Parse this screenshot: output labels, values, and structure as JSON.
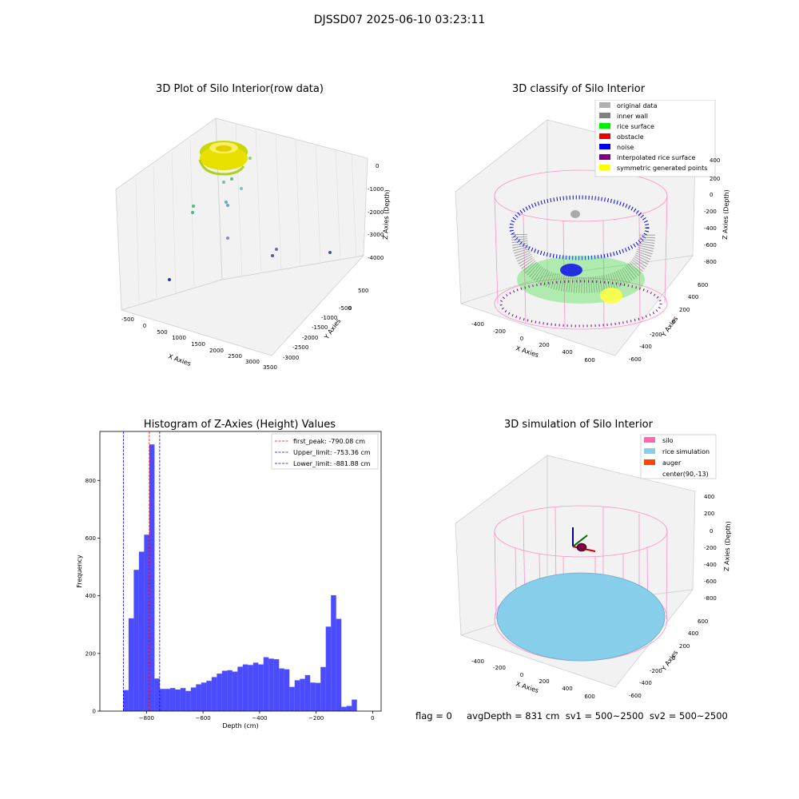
{
  "suptitle": "DJSSD07 2025-06-10 03:23:11",
  "panels": {
    "raw": {
      "title": "3D Plot of Silo Interior(row data)",
      "x_label": "X Axies",
      "y_label": "Y Axies",
      "z_label": "Z Axies (Depth)",
      "x_ticks": [
        "-500",
        "0",
        "500",
        "1000",
        "1500",
        "2000",
        "2500",
        "3000",
        "3500"
      ],
      "y_ticks": [
        "500",
        "0",
        "-500",
        "-1000",
        "-1500",
        "-2000",
        "-2500",
        "-3000"
      ],
      "z_ticks": [
        "0",
        "-1000",
        "-2000",
        "-3000",
        "-4000"
      ]
    },
    "classify": {
      "title": "3D classify of Silo Interior",
      "x_label": "X Axies",
      "y_label": "Y Axies",
      "z_label": "Z Axies (Depth)",
      "x_ticks": [
        "-400",
        "-200",
        "0",
        "200",
        "400",
        "600"
      ],
      "y_ticks": [
        "600",
        "400",
        "200",
        "0",
        "-200",
        "-400",
        "-600"
      ],
      "z_ticks": [
        "400",
        "200",
        "0",
        "-200",
        "-400",
        "-600",
        "-800"
      ],
      "legend": [
        {
          "label": "original data",
          "color": "#b0b0b0"
        },
        {
          "label": "inner wall",
          "color": "#808080"
        },
        {
          "label": "rice surface",
          "color": "#00ee00"
        },
        {
          "label": "obstacle",
          "color": "#ee0000"
        },
        {
          "label": "noise",
          "color": "#0000ee"
        },
        {
          "label": "interpolated rice surface",
          "color": "#800080"
        },
        {
          "label": "symmetric generated points",
          "color": "#ffff00"
        }
      ]
    },
    "simulation": {
      "title": "3D simulation of Silo Interior",
      "x_label": "X Axies",
      "y_label": "Y Axies",
      "z_label": "Z Axies (Depth)",
      "x_ticks": [
        "-400",
        "-200",
        "0",
        "200",
        "400",
        "600"
      ],
      "y_ticks": [
        "600",
        "400",
        "200",
        "0",
        "-200",
        "-400",
        "-600"
      ],
      "z_ticks": [
        "400",
        "200",
        "0",
        "-200",
        "-400",
        "-600",
        "-800"
      ],
      "legend": [
        {
          "label": "silo",
          "color": "#ff69b4"
        },
        {
          "label": "rice simulation",
          "color": "#87ceeb"
        },
        {
          "label": "auger",
          "color": "#ff4500"
        },
        {
          "label": "center(90,-13)",
          "color": "#ffffff"
        }
      ]
    }
  },
  "chart_data": {
    "type": "bar",
    "title": "Histogram of Z-Axies (Height) Values",
    "xlabel": "Depth (cm)",
    "ylabel": "Frequency",
    "xlim": [
      -965,
      30
    ],
    "ylim": [
      0,
      970
    ],
    "x_ticks": [
      -800,
      -600,
      -400,
      -200,
      0
    ],
    "y_ticks": [
      0,
      200,
      400,
      600,
      800
    ],
    "bin_start": -881.88,
    "bin_width": 18.36,
    "values": [
      73,
      322,
      490,
      553,
      612,
      925,
      113,
      77,
      77,
      80,
      75,
      80,
      70,
      82,
      93,
      99,
      105,
      118,
      130,
      140,
      142,
      137,
      154,
      162,
      160,
      168,
      162,
      187,
      182,
      180,
      148,
      145,
      84,
      107,
      112,
      125,
      99,
      98,
      153,
      293,
      402,
      320,
      15,
      18,
      40
    ],
    "color": "#0000ff",
    "lines": [
      {
        "label": "first_peak: -790.08 cm",
        "x": -790.08,
        "color": "#ff0000"
      },
      {
        "label": "Upper_limit: -753.36 cm",
        "x": -753.36,
        "color": "#0000ff"
      },
      {
        "label": "Lower_limit: -881.88 cm",
        "x": -881.88,
        "color": "#0000ff"
      }
    ]
  },
  "footer": "flag = 0     avgDepth = 831 cm  sv1 = 500~2500  sv2 = 500~2500"
}
